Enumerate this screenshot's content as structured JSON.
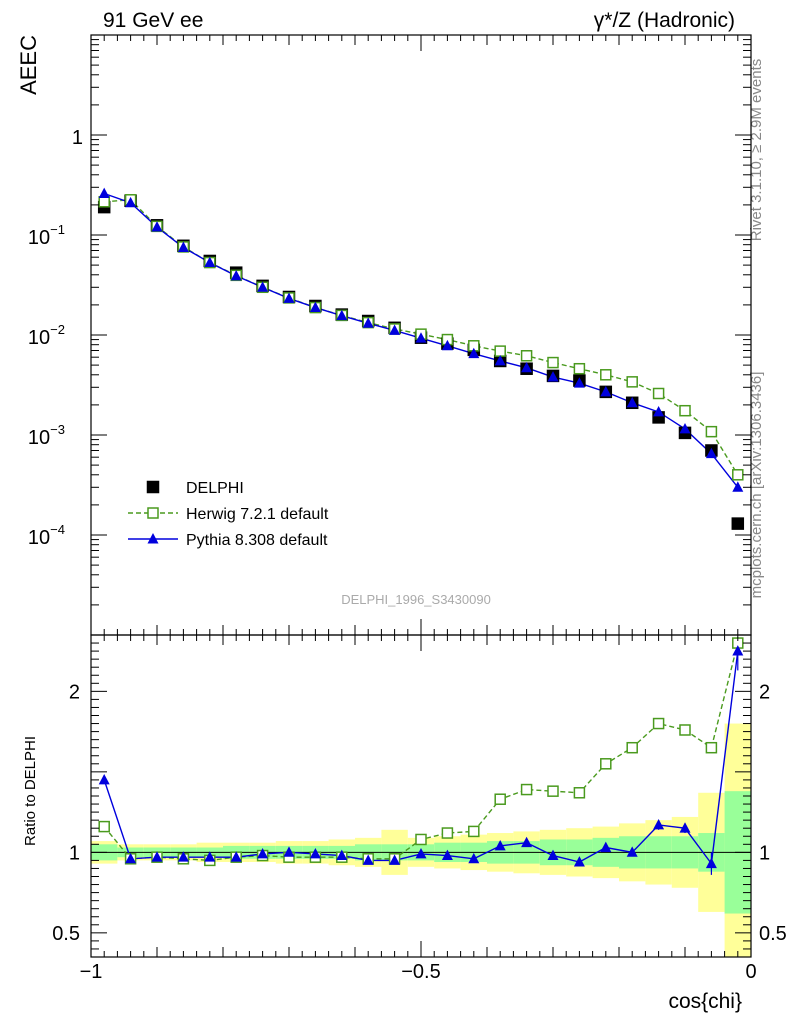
{
  "header": {
    "left_label": "91 GeV ee",
    "right_label": "γ*/Z (Hadronic)"
  },
  "side_text": {
    "rivet": "Rivet 3.1.10, ≥ 2.9M events",
    "mcplots": "mcplots.cern.ch [arXiv:1306.3436]"
  },
  "watermark": "DELPHI_1996_S3430090",
  "colors": {
    "data": "#000000",
    "herwig": "#4a9a1e",
    "pythia": "#0000dd",
    "band_inner": "#99ff99",
    "band_outer": "#ffff99"
  },
  "chart_data": [
    {
      "type": "scatter",
      "ylabel": "AEEC",
      "yscale": "log",
      "xlim": [
        -1.0,
        0.0
      ],
      "ylim": [
        1e-05,
        10
      ],
      "yticks": [
        {
          "value": 1,
          "label": "1"
        },
        {
          "value": 0.1,
          "label": "10",
          "sup": "−1"
        },
        {
          "value": 0.01,
          "label": "10",
          "sup": "−2"
        },
        {
          "value": 0.001,
          "label": "10",
          "sup": "−3"
        },
        {
          "value": 0.0001,
          "label": "10",
          "sup": "−4"
        }
      ],
      "legend_position": "lower-left",
      "x": [
        -0.98,
        -0.94,
        -0.9,
        -0.86,
        -0.82,
        -0.78,
        -0.74,
        -0.7,
        -0.66,
        -0.62,
        -0.58,
        -0.54,
        -0.5,
        -0.46,
        -0.42,
        -0.38,
        -0.34,
        -0.3,
        -0.26,
        -0.22,
        -0.18,
        -0.14,
        -0.1,
        -0.06,
        -0.02
      ],
      "series": [
        {
          "name": "DELPHI",
          "marker": "filled-square",
          "values": [
            0.19,
            0.22,
            0.125,
            0.078,
            0.055,
            0.042,
            0.031,
            0.024,
            0.0195,
            0.016,
            0.0138,
            0.0118,
            0.0094,
            0.0082,
            0.0071,
            0.0055,
            0.0046,
            0.0039,
            0.0035,
            0.0027,
            0.0021,
            0.0015,
            0.00105,
            0.0007,
            0.00013
          ]
        },
        {
          "name": "Herwig 7.2.1 default",
          "marker": "open-square",
          "line": "dashed",
          "values": [
            0.215,
            0.225,
            0.122,
            0.076,
            0.053,
            0.0395,
            0.03,
            0.0235,
            0.0188,
            0.0157,
            0.0133,
            0.0115,
            0.0102,
            0.009,
            0.0078,
            0.0069,
            0.0062,
            0.0053,
            0.0046,
            0.004,
            0.0034,
            0.0026,
            0.00175,
            0.00108,
            0.0004
          ]
        },
        {
          "name": "Pythia 8.308 default",
          "marker": "filled-triangle",
          "line": "solid",
          "values": [
            0.26,
            0.21,
            0.12,
            0.075,
            0.053,
            0.039,
            0.03,
            0.0232,
            0.0188,
            0.0156,
            0.0131,
            0.0111,
            0.0093,
            0.0078,
            0.0065,
            0.0055,
            0.0047,
            0.0038,
            0.0033,
            0.0027,
            0.0021,
            0.0017,
            0.00115,
            0.00065,
            0.0003
          ]
        }
      ]
    },
    {
      "type": "line",
      "ylabel": "Ratio to DELPHI",
      "xlabel": "cos{chi}",
      "xlim": [
        -1.0,
        0.0
      ],
      "ylim": [
        0.35,
        2.35
      ],
      "xticks": [
        {
          "value": -1,
          "label": "−1"
        },
        {
          "value": -0.5,
          "label": "−0.5"
        },
        {
          "value": 0,
          "label": "0"
        }
      ],
      "yticks": [
        {
          "value": 2,
          "label": "2"
        },
        {
          "value": 1,
          "label": "1"
        },
        {
          "value": 0.5,
          "label": "0.5"
        }
      ],
      "reference_line": 1,
      "x": [
        -0.98,
        -0.94,
        -0.9,
        -0.86,
        -0.82,
        -0.78,
        -0.74,
        -0.7,
        -0.66,
        -0.62,
        -0.58,
        -0.54,
        -0.5,
        -0.46,
        -0.42,
        -0.38,
        -0.34,
        -0.3,
        -0.26,
        -0.22,
        -0.18,
        -0.14,
        -0.1,
        -0.06,
        -0.02
      ],
      "bands": {
        "inner_halfwidth": [
          0.05,
          0.03,
          0.03,
          0.03,
          0.03,
          0.04,
          0.04,
          0.04,
          0.04,
          0.04,
          0.05,
          0.05,
          0.05,
          0.06,
          0.06,
          0.07,
          0.07,
          0.08,
          0.08,
          0.09,
          0.1,
          0.1,
          0.1,
          0.12,
          0.38
        ],
        "outer_halfwidth": [
          0.07,
          0.05,
          0.05,
          0.05,
          0.06,
          0.06,
          0.06,
          0.07,
          0.07,
          0.08,
          0.09,
          0.14,
          0.09,
          0.1,
          0.11,
          0.12,
          0.13,
          0.14,
          0.15,
          0.16,
          0.18,
          0.2,
          0.22,
          0.37,
          0.8
        ]
      },
      "series": [
        {
          "name": "Herwig 7.2.1 default",
          "marker": "open-square",
          "line": "dashed",
          "values": [
            1.16,
            0.96,
            0.97,
            0.96,
            0.95,
            0.97,
            0.98,
            0.97,
            0.97,
            0.97,
            0.96,
            0.96,
            1.08,
            1.12,
            1.13,
            1.33,
            1.39,
            1.38,
            1.37,
            1.55,
            1.65,
            1.8,
            1.76,
            1.65,
            2.3
          ]
        },
        {
          "name": "Pythia 8.308 default",
          "marker": "filled-triangle",
          "line": "solid",
          "values": [
            1.45,
            0.96,
            0.97,
            0.97,
            0.97,
            0.97,
            0.99,
            1.0,
            0.99,
            0.98,
            0.95,
            0.95,
            0.99,
            0.98,
            0.96,
            1.04,
            1.06,
            0.98,
            0.94,
            1.03,
            1.0,
            1.17,
            1.15,
            0.93,
            2.25
          ],
          "errors": [
            0,
            0,
            0,
            0,
            0,
            0,
            0,
            0,
            0,
            0,
            0,
            0,
            0,
            0,
            0,
            0,
            0,
            0,
            0,
            0,
            0,
            0.03,
            0.03,
            0.07,
            0.12
          ]
        }
      ]
    }
  ]
}
